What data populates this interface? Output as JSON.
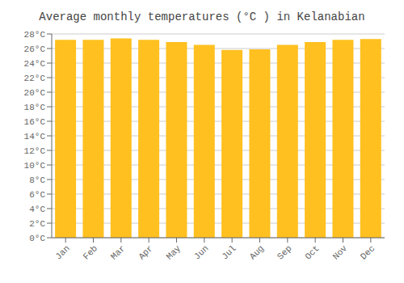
{
  "chart_data": {
    "type": "bar",
    "title": "Average monthly temperatures (°C ) in Kelanabian",
    "categories": [
      "Jan",
      "Feb",
      "Mar",
      "Apr",
      "May",
      "Jun",
      "Jul",
      "Aug",
      "Sep",
      "Oct",
      "Nov",
      "Dec"
    ],
    "values": [
      27.2,
      27.2,
      27.4,
      27.2,
      26.9,
      26.5,
      25.8,
      25.9,
      26.5,
      26.9,
      27.2,
      27.3
    ],
    "color": "#FFC020",
    "ylim": [
      0,
      28
    ],
    "yticks": [
      {
        "value": 0,
        "label": "0°C"
      },
      {
        "value": 2,
        "label": "2°C"
      },
      {
        "value": 4,
        "label": "4°C"
      },
      {
        "value": 6,
        "label": "6°C"
      },
      {
        "value": 8,
        "label": "8°C"
      },
      {
        "value": 10,
        "label": "10°C"
      },
      {
        "value": 12,
        "label": "12°C"
      },
      {
        "value": 14,
        "label": "14°C"
      },
      {
        "value": 16,
        "label": "16°C"
      },
      {
        "value": 18,
        "label": "18°C"
      },
      {
        "value": 20,
        "label": "20°C"
      },
      {
        "value": 22,
        "label": "22°C"
      },
      {
        "value": 24,
        "label": "24°C"
      },
      {
        "value": 26,
        "label": "26°C"
      },
      {
        "value": 28,
        "label": "28°C"
      }
    ],
    "grid": true
  }
}
